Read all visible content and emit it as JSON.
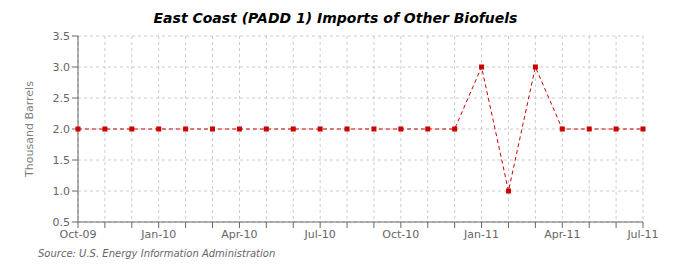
{
  "chart_data": {
    "type": "line",
    "title": "East Coast (PADD 1) Imports of Other Biofuels",
    "ylabel": "Thousand Barrels",
    "annotations": [
      "Source: U.S. Energy Information Administration"
    ],
    "categories": [
      "Oct-09",
      null,
      null,
      "Jan-10",
      null,
      null,
      "Apr-10",
      null,
      null,
      "Jul-10",
      null,
      null,
      "Oct-10",
      null,
      null,
      "Jan-11",
      null,
      null,
      "Apr-11",
      null,
      null,
      "Jul-11"
    ],
    "values": [
      2,
      2,
      2,
      2,
      2,
      2,
      2,
      2,
      2,
      2,
      2,
      2,
      2,
      2,
      2,
      3,
      1,
      3,
      2,
      2,
      2,
      2
    ],
    "color": "#cc0000",
    "marker": "square",
    "line_style": "dashed",
    "ylim": [
      0.5,
      3.5
    ],
    "yticks": [
      0.5,
      {
        "value": 1.0,
        "label": "1.0"
      },
      1.5,
      {
        "value": 2.0,
        "label": "2.0"
      },
      2.5,
      {
        "value": 3.0,
        "label": "3.0"
      },
      3.5
    ],
    "grid": true
  }
}
